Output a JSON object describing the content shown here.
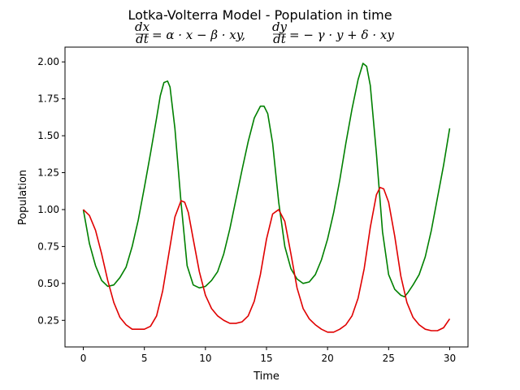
{
  "chart_data": {
    "type": "line",
    "title": "Lotka-Volterra Model - Population in time",
    "equations": {
      "prey": {
        "lhs_num": "dx",
        "lhs_den": "dt",
        "rhs": "= α · x − β · xy,"
      },
      "predator": {
        "lhs_num": "dy",
        "lhs_den": "dt",
        "rhs": "= − γ · y + δ · xy"
      }
    },
    "xlabel": "Time",
    "ylabel": "Population",
    "xlim": [
      -1.5,
      31.5
    ],
    "ylim": [
      0.07,
      2.1
    ],
    "xticks": [
      0,
      5,
      10,
      15,
      20,
      25,
      30
    ],
    "xtick_labels": [
      "0",
      "5",
      "10",
      "15",
      "20",
      "25",
      "30"
    ],
    "yticks": [
      0.25,
      0.5,
      0.75,
      1.0,
      1.25,
      1.5,
      1.75,
      2.0
    ],
    "ytick_labels": [
      "0.25",
      "0.50",
      "0.75",
      "1.00",
      "1.25",
      "1.50",
      "1.75",
      "2.00"
    ],
    "grid": false,
    "series": [
      {
        "color": "#008000",
        "x": [
          0,
          0.5,
          1,
          1.5,
          2,
          2.5,
          3,
          3.5,
          4,
          4.5,
          5,
          5.5,
          6,
          6.3,
          6.6,
          6.9,
          7.1,
          7.5,
          8,
          8.5,
          9,
          9.5,
          10,
          10.5,
          11,
          11.5,
          12,
          12.5,
          13,
          13.5,
          14,
          14.5,
          14.8,
          15.1,
          15.5,
          16,
          16.5,
          17,
          17.5,
          18,
          18.5,
          19,
          19.5,
          20,
          20.5,
          21,
          21.5,
          22,
          22.5,
          22.9,
          23.2,
          23.5,
          24,
          24.5,
          25,
          25.5,
          26,
          26.3,
          26.6,
          27,
          27.5,
          28,
          28.5,
          29,
          29.5,
          30
        ],
        "y": [
          1.0,
          0.77,
          0.62,
          0.52,
          0.48,
          0.49,
          0.54,
          0.61,
          0.75,
          0.93,
          1.15,
          1.38,
          1.62,
          1.77,
          1.86,
          1.87,
          1.83,
          1.55,
          1.05,
          0.62,
          0.49,
          0.47,
          0.48,
          0.52,
          0.58,
          0.7,
          0.87,
          1.07,
          1.27,
          1.46,
          1.62,
          1.7,
          1.7,
          1.65,
          1.45,
          1.05,
          0.75,
          0.6,
          0.53,
          0.5,
          0.51,
          0.56,
          0.66,
          0.8,
          0.98,
          1.2,
          1.45,
          1.68,
          1.88,
          1.99,
          1.97,
          1.84,
          1.38,
          0.85,
          0.56,
          0.46,
          0.42,
          0.41,
          0.44,
          0.49,
          0.56,
          0.68,
          0.86,
          1.08,
          1.3,
          1.55
        ]
      },
      {
        "color": "#e00000",
        "x": [
          0,
          0.5,
          1,
          1.5,
          2,
          2.5,
          3,
          3.5,
          4,
          4.5,
          5,
          5.5,
          6,
          6.5,
          7,
          7.5,
          8,
          8.3,
          8.6,
          9,
          9.5,
          10,
          10.5,
          11,
          11.5,
          12,
          12.5,
          13,
          13.5,
          14,
          14.5,
          15,
          15.5,
          16,
          16.5,
          17,
          17.5,
          18,
          18.5,
          19,
          19.5,
          20,
          20.5,
          21,
          21.5,
          22,
          22.5,
          23,
          23.5,
          24,
          24.3,
          24.6,
          25,
          25.5,
          26,
          26.5,
          27,
          27.5,
          28,
          28.5,
          29,
          29.5,
          30
        ],
        "y": [
          1.0,
          0.96,
          0.86,
          0.7,
          0.52,
          0.37,
          0.27,
          0.22,
          0.19,
          0.19,
          0.19,
          0.21,
          0.28,
          0.45,
          0.7,
          0.95,
          1.06,
          1.05,
          0.98,
          0.8,
          0.58,
          0.42,
          0.33,
          0.28,
          0.25,
          0.23,
          0.23,
          0.24,
          0.28,
          0.38,
          0.56,
          0.8,
          0.97,
          1.0,
          0.92,
          0.7,
          0.47,
          0.33,
          0.26,
          0.22,
          0.19,
          0.17,
          0.17,
          0.19,
          0.22,
          0.28,
          0.4,
          0.6,
          0.88,
          1.1,
          1.15,
          1.14,
          1.05,
          0.82,
          0.55,
          0.37,
          0.27,
          0.22,
          0.19,
          0.18,
          0.18,
          0.2,
          0.26
        ]
      }
    ]
  }
}
